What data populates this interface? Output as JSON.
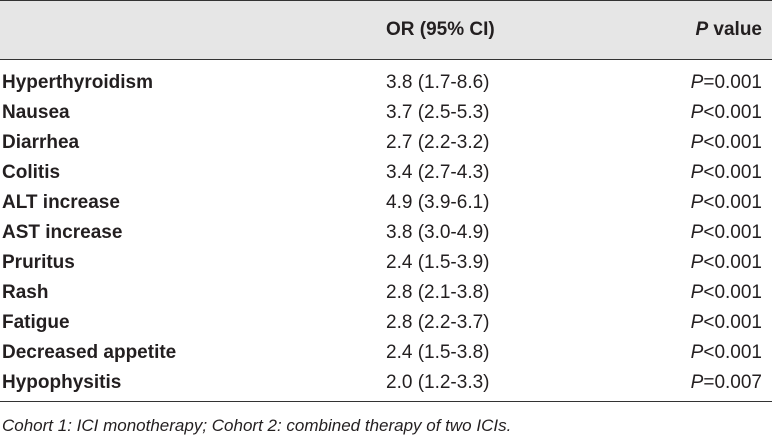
{
  "header": {
    "or_label": "OR (95% CI)",
    "p_label_italic": "P",
    "p_label_rest": " value"
  },
  "rows": [
    {
      "name": "Hyperthyroidism",
      "or": "3.8 (1.7-8.6)",
      "p_letter": "P",
      "p_rest": "=0.001"
    },
    {
      "name": "Nausea",
      "or": "3.7 (2.5-5.3)",
      "p_letter": "P",
      "p_rest": "<0.001"
    },
    {
      "name": "Diarrhea",
      "or": "2.7 (2.2-3.2)",
      "p_letter": "P",
      "p_rest": "<0.001"
    },
    {
      "name": "Colitis",
      "or": "3.4 (2.7-4.3)",
      "p_letter": "P",
      "p_rest": "<0.001"
    },
    {
      "name": "ALT increase",
      "or": "4.9 (3.9-6.1)",
      "p_letter": "P",
      "p_rest": "<0.001"
    },
    {
      "name": "AST increase",
      "or": "3.8 (3.0-4.9)",
      "p_letter": "P",
      "p_rest": "<0.001"
    },
    {
      "name": "Pruritus",
      "or": "2.4 (1.5-3.9)",
      "p_letter": "P",
      "p_rest": "<0.001"
    },
    {
      "name": "Rash",
      "or": "2.8 (2.1-3.8)",
      "p_letter": "P",
      "p_rest": "<0.001"
    },
    {
      "name": "Fatigue",
      "or": "2.8 (2.2-3.7)",
      "p_letter": "P",
      "p_rest": "<0.001"
    },
    {
      "name": "Decreased appetite",
      "or": "2.4 (1.5-3.8)",
      "p_letter": "P",
      "p_rest": "<0.001"
    },
    {
      "name": "Hypophysitis",
      "or": "2.0 (1.2-3.3)",
      "p_letter": "P",
      "p_rest": "=0.007"
    }
  ],
  "footnote": "Cohort 1: ICI monotherapy; Cohort 2: combined therapy of two ICIs.",
  "colors": {
    "header_band": "#e6e6e6",
    "text": "#231f20",
    "rule": "#333333"
  }
}
